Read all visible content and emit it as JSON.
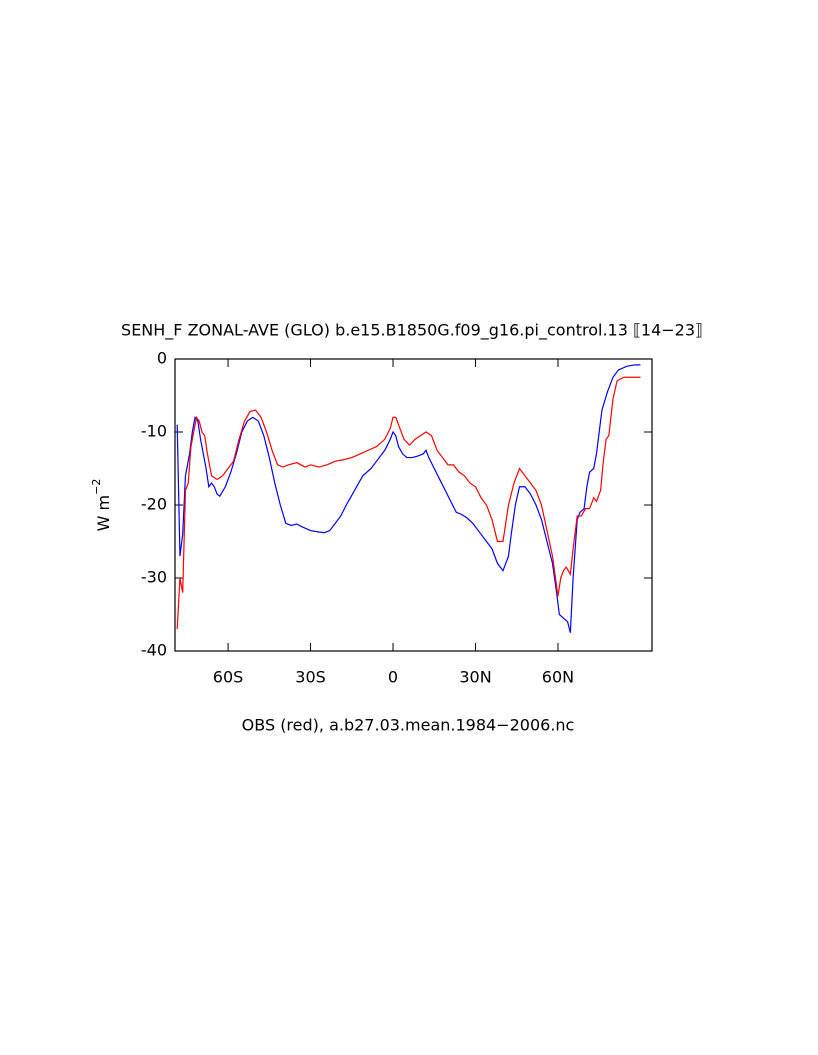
{
  "chart_data": {
    "type": "line",
    "title": "SENH_F ZONAL-AVE (GLO) b.e15.B1850G.f09_g16.pi_control.13 ⟦14−23⟧",
    "subtitle": "OBS (red), a.b27.03.mean.1984−2006.nc",
    "y_label": "W m",
    "y_label_superscript": "−2",
    "xlim": [
      -79.3,
      94.2
    ],
    "ylim": [
      -40,
      0
    ],
    "xticks": [
      {
        "value": -60,
        "label": "60S"
      },
      {
        "value": -30,
        "label": "30S"
      },
      0,
      {
        "value": 30,
        "label": "30N"
      },
      {
        "value": 60,
        "label": "60N"
      }
    ],
    "yticks": [
      0,
      -10,
      -20,
      -30,
      -40
    ],
    "series": [
      {
        "color": "#0000ff",
        "x": [
          -78.5,
          -77.5,
          -76.5,
          -75.5,
          -74,
          -73,
          -72,
          -71,
          -70,
          -69,
          -68,
          -67,
          -66,
          -65,
          -64,
          -63,
          -61,
          -59,
          -57,
          -55,
          -53,
          -51,
          -49,
          -47,
          -45,
          -43,
          -41,
          -39,
          -37,
          -35,
          -33,
          -30,
          -27,
          -25,
          -23,
          -21,
          -19,
          -17,
          -14,
          -11,
          -8,
          -5,
          -3,
          -1,
          0,
          1,
          2,
          3.5,
          5,
          7,
          9,
          11,
          12,
          13,
          15,
          17,
          19,
          21,
          23,
          25,
          27,
          29,
          31,
          34,
          36,
          38,
          40,
          42,
          43,
          44.5,
          46,
          48,
          50,
          52,
          54,
          56,
          58,
          59.5,
          60.5,
          62,
          63.5,
          64.5,
          65.5,
          67,
          68,
          69.5,
          70.5,
          71.5,
          73,
          74,
          75,
          76,
          78,
          80,
          82,
          85,
          88,
          90
        ],
        "values": [
          -9,
          -27,
          -24,
          -16,
          -13,
          -10,
          -8,
          -8.5,
          -11,
          -13,
          -15,
          -17.5,
          -17,
          -17.5,
          -18.5,
          -18.8,
          -17.5,
          -15.5,
          -13,
          -10,
          -8.5,
          -8,
          -8.5,
          -10.5,
          -13.5,
          -17,
          -20,
          -22.5,
          -22.8,
          -22.6,
          -23,
          -23.5,
          -23.7,
          -23.8,
          -23.5,
          -22.5,
          -21.5,
          -20,
          -18,
          -16,
          -15,
          -13.5,
          -12.5,
          -11,
          -10,
          -10.5,
          -12,
          -13,
          -13.5,
          -13.5,
          -13.3,
          -13,
          -12.5,
          -13.5,
          -15,
          -16.5,
          -18,
          -19.5,
          -21,
          -21.3,
          -21.8,
          -22.5,
          -23.5,
          -25,
          -26,
          -28,
          -29,
          -27,
          -24,
          -20,
          -17.5,
          -17.5,
          -18.5,
          -20,
          -22,
          -25,
          -28,
          -32,
          -35,
          -35.5,
          -36,
          -37.5,
          -30,
          -22,
          -21,
          -20.5,
          -17.5,
          -15.5,
          -15,
          -13,
          -10,
          -7,
          -4.5,
          -2.5,
          -1.5,
          -1,
          -0.8,
          -0.8
        ]
      },
      {
        "color": "#ff0000",
        "x": [
          -78.5,
          -77.5,
          -76.5,
          -75.5,
          -74.5,
          -73.5,
          -72.5,
          -71.5,
          -70.5,
          -69.5,
          -68.5,
          -67.5,
          -66,
          -64,
          -62,
          -60,
          -58,
          -56,
          -54,
          -52,
          -50,
          -48,
          -46,
          -44,
          -42,
          -40,
          -38,
          -35,
          -32,
          -30,
          -27,
          -24,
          -21,
          -18,
          -15,
          -12,
          -9,
          -6,
          -3,
          -1,
          0,
          1,
          2,
          4,
          6,
          8,
          10,
          12,
          14,
          16,
          18,
          20,
          22,
          24,
          26,
          28,
          30,
          32,
          34,
          36,
          38,
          40,
          42,
          44,
          46,
          48,
          50,
          52,
          54,
          56,
          58,
          60,
          61,
          62,
          63,
          64.5,
          65.5,
          67,
          68.5,
          70,
          71.5,
          73,
          74,
          75.5,
          76.5,
          77.5,
          78.5,
          80,
          81.5,
          84,
          87,
          90
        ],
        "values": [
          -37,
          -30,
          -32,
          -18,
          -17,
          -12,
          -10,
          -8,
          -8.5,
          -10,
          -10.5,
          -13,
          -16,
          -16.5,
          -16,
          -15,
          -14,
          -11,
          -8.5,
          -7.2,
          -7,
          -8,
          -10,
          -12.5,
          -14.5,
          -14.8,
          -14.5,
          -14.2,
          -14.8,
          -14.5,
          -14.8,
          -14.5,
          -14,
          -13.8,
          -13.5,
          -13,
          -12.5,
          -12,
          -11,
          -9.5,
          -8,
          -8,
          -9,
          -11,
          -11.8,
          -11,
          -10.5,
          -10,
          -10.5,
          -12.5,
          -13.5,
          -14.5,
          -14.5,
          -15.5,
          -16,
          -17,
          -17.5,
          -19,
          -20,
          -22,
          -25,
          -25,
          -20,
          -17,
          -15,
          -16,
          -17,
          -18,
          -20,
          -23.5,
          -27,
          -32.5,
          -30,
          -29,
          -28.5,
          -29.5,
          -26,
          -21.5,
          -21.5,
          -20.5,
          -20.5,
          -19,
          -19.5,
          -18,
          -14,
          -11,
          -10.5,
          -5.5,
          -3,
          -2.5,
          -2.5,
          -2.5
        ]
      }
    ]
  }
}
